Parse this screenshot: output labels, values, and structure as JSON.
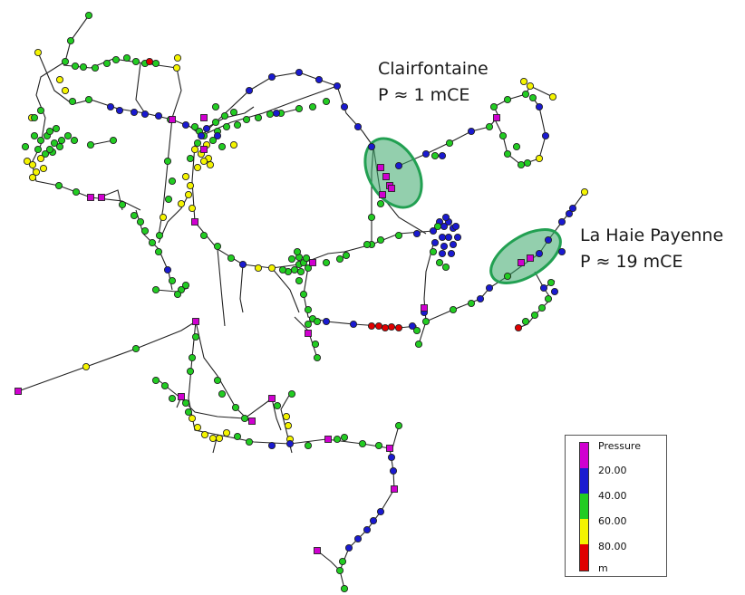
{
  "zones": [
    {
      "name": "Clairfontaine",
      "pressure": "P ≈ 1 mCE"
    },
    {
      "name": "La Haie Payenne",
      "pressure": "P ≈ 19 mCE"
    }
  ],
  "legend": {
    "title": "Pressure",
    "ticks": [
      "20.00",
      "40.00",
      "60.00",
      "80.00"
    ],
    "unit": "m",
    "colors": [
      "#d000d0",
      "#1a1ad0",
      "#22cc22",
      "#f4f400",
      "#e00000"
    ]
  },
  "colors": {
    "pipe": "#222222",
    "highlight_fill": "#3aa86a",
    "highlight_stroke": "#22a052"
  }
}
